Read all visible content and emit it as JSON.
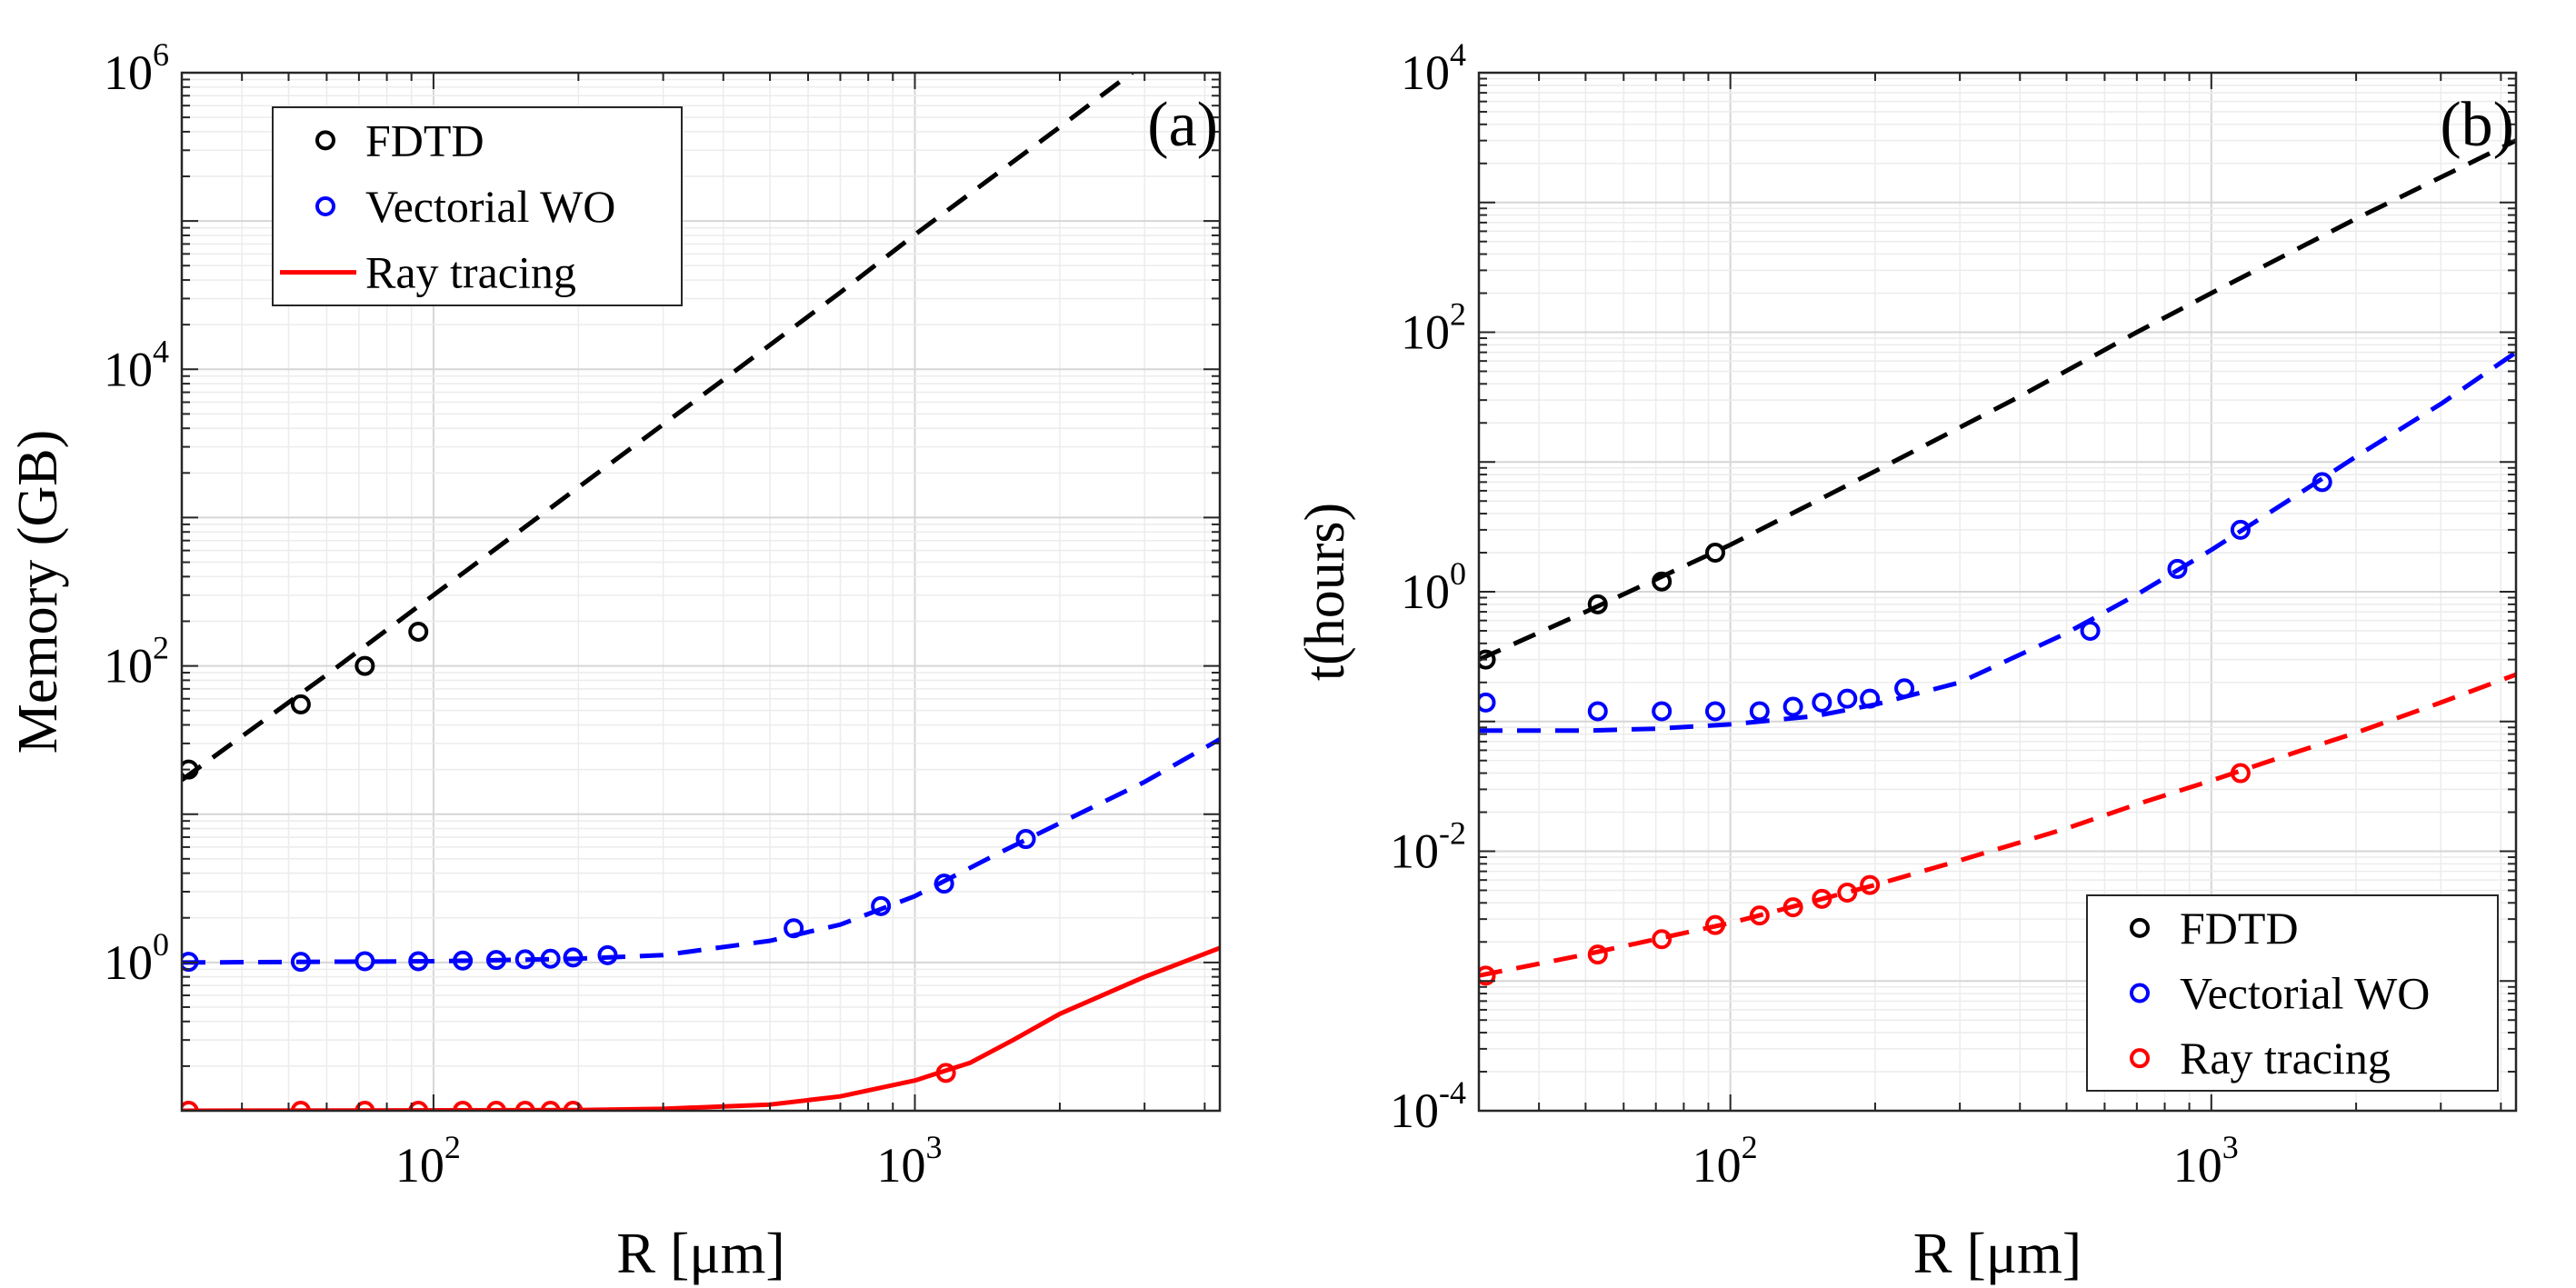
{
  "chart_data": [
    {
      "type": "scatter",
      "panel_label": "(a)",
      "xlabel": "R [μm]",
      "ylabel": "Memory (GB)",
      "xscale": "log",
      "yscale": "log",
      "xlim": [
        30,
        4300
      ],
      "ylim": [
        0.1,
        1000000
      ],
      "grid": true,
      "legend_position": "top-left",
      "x_ticks": [
        {
          "base": "10",
          "exp": "2",
          "value": 100
        },
        {
          "base": "10",
          "exp": "3",
          "value": 1000
        }
      ],
      "y_ticks": [
        {
          "base": "10",
          "exp": "0",
          "value": 1
        },
        {
          "base": "10",
          "exp": "2",
          "value": 100
        },
        {
          "base": "10",
          "exp": "4",
          "value": 10000
        },
        {
          "base": "10",
          "exp": "6",
          "value": 1000000
        }
      ],
      "legend": [
        {
          "label": "FDTD",
          "color": "#000000",
          "style": "marker"
        },
        {
          "label": "Vectorial WO",
          "color": "#0000ff",
          "style": "marker"
        },
        {
          "label": "Ray tracing",
          "color": "#ff0000",
          "style": "line"
        }
      ],
      "series": [
        {
          "name": "FDTD",
          "color": "#000000",
          "points": {
            "x": [
              31,
              53,
              72,
              93
            ],
            "y": [
              20,
              55,
              100,
              170
            ]
          },
          "fit": {
            "style": "dashed",
            "x": [
              30,
              60,
              100,
              200,
              400,
              700,
              1000,
              2000,
              4300
            ],
            "y": [
              17,
              87,
              300,
              1600,
              8500,
              33000,
              81000,
              430000,
              2800000
            ]
          }
        },
        {
          "name": "Vectorial WO",
          "color": "#0000ff",
          "points": {
            "x": [
              31,
              53,
              72,
              93,
              115,
              135,
              155,
              175,
              195,
              230,
              560,
              850,
              1150,
              1700
            ],
            "y": [
              1.01,
              1.01,
              1.02,
              1.02,
              1.03,
              1.04,
              1.05,
              1.06,
              1.08,
              1.12,
              1.7,
              2.4,
              3.4,
              6.8
            ]
          },
          "fit": {
            "style": "dashed",
            "x": [
              30,
              100,
              200,
              300,
              500,
              700,
              1000,
              1500,
              2000,
              3000,
              4300
            ],
            "y": [
              1.0,
              1.02,
              1.06,
              1.12,
              1.4,
              1.8,
              2.8,
              5.5,
              8.7,
              16.5,
              32
            ]
          }
        },
        {
          "name": "Ray tracing",
          "color": "#ff0000",
          "points": {
            "x": [
              31,
              53,
              72,
              93,
              115,
              135,
              155,
              175,
              195,
              1160
            ],
            "y": [
              0.1,
              0.1,
              0.1,
              0.1,
              0.1,
              0.1,
              0.1,
              0.1,
              0.1,
              0.18
            ]
          },
          "fit": {
            "style": "solid",
            "x": [
              30,
              200,
              300,
              500,
              700,
              1000,
              1300,
              1600,
              2000,
              3000,
              4300
            ],
            "y": [
              0.1,
              0.101,
              0.103,
              0.11,
              0.125,
              0.16,
              0.21,
              0.3,
              0.45,
              0.8,
              1.25
            ]
          }
        }
      ]
    },
    {
      "type": "scatter",
      "panel_label": "(b)",
      "xlabel": "R [μm]",
      "ylabel": "t(hours)",
      "xscale": "log",
      "yscale": "log",
      "xlim": [
        30,
        4300
      ],
      "ylim": [
        0.0001,
        10000
      ],
      "grid": true,
      "legend_position": "bottom-right",
      "x_ticks": [
        {
          "base": "10",
          "exp": "2",
          "value": 100
        },
        {
          "base": "10",
          "exp": "3",
          "value": 1000
        }
      ],
      "y_ticks": [
        {
          "base": "10",
          "exp": "-4",
          "value": 0.0001
        },
        {
          "base": "10",
          "exp": "-2",
          "value": 0.01
        },
        {
          "base": "10",
          "exp": "0",
          "value": 1
        },
        {
          "base": "10",
          "exp": "2",
          "value": 100
        },
        {
          "base": "10",
          "exp": "4",
          "value": 10000
        }
      ],
      "legend": [
        {
          "label": "FDTD",
          "color": "#000000",
          "style": "marker"
        },
        {
          "label": "Vectorial WO",
          "color": "#0000ff",
          "style": "marker"
        },
        {
          "label": "Ray tracing",
          "color": "#ff0000",
          "style": "marker"
        }
      ],
      "series": [
        {
          "name": "FDTD",
          "color": "#000000",
          "points": {
            "x": [
              31,
              53,
              72,
              93
            ],
            "y": [
              0.3,
              0.8,
              1.2,
              2.0
            ]
          },
          "fit": {
            "style": "dashed",
            "x": [
              30,
              50,
              100,
              200,
              400,
              700,
              1000,
              2000,
              4300
            ],
            "y": [
              0.3,
              0.7,
              2.3,
              8.5,
              32,
              100,
              200,
              750,
              3000
            ]
          }
        },
        {
          "name": "Vectorial WO",
          "color": "#0000ff",
          "points": {
            "x": [
              31,
              53,
              72,
              93,
              115,
              135,
              155,
              175,
              195,
              230,
              560,
              850,
              1150,
              1700
            ],
            "y": [
              0.14,
              0.12,
              0.12,
              0.12,
              0.12,
              0.13,
              0.14,
              0.15,
              0.15,
              0.18,
              0.5,
              1.5,
              3.0,
              7.0
            ]
          },
          "fit": {
            "style": "dashed",
            "x": [
              30,
              50,
              70,
              100,
              150,
              200,
              300,
              500,
              700,
              1000,
              1500,
              2000,
              3000,
              4300
            ],
            "y": [
              0.085,
              0.085,
              0.088,
              0.095,
              0.11,
              0.135,
              0.2,
              0.48,
              0.95,
              2.1,
              5.5,
              11,
              28,
              70
            ]
          }
        },
        {
          "name": "Ray tracing",
          "color": "#ff0000",
          "points": {
            "x": [
              31,
              53,
              72,
              93,
              115,
              135,
              155,
              175,
              195,
              1150
            ],
            "y": [
              0.0011,
              0.0016,
              0.0021,
              0.0027,
              0.0032,
              0.0037,
              0.0043,
              0.0048,
              0.0055,
              0.04
            ]
          },
          "fit": {
            "style": "dashed",
            "x": [
              30,
              50,
              100,
              200,
              300,
              500,
              700,
              1000,
              1500,
              2000,
              3000,
              4300
            ],
            "y": [
              0.0011,
              0.0016,
              0.0028,
              0.0055,
              0.0085,
              0.015,
              0.023,
              0.035,
              0.058,
              0.082,
              0.14,
              0.23
            ]
          }
        }
      ]
    }
  ]
}
